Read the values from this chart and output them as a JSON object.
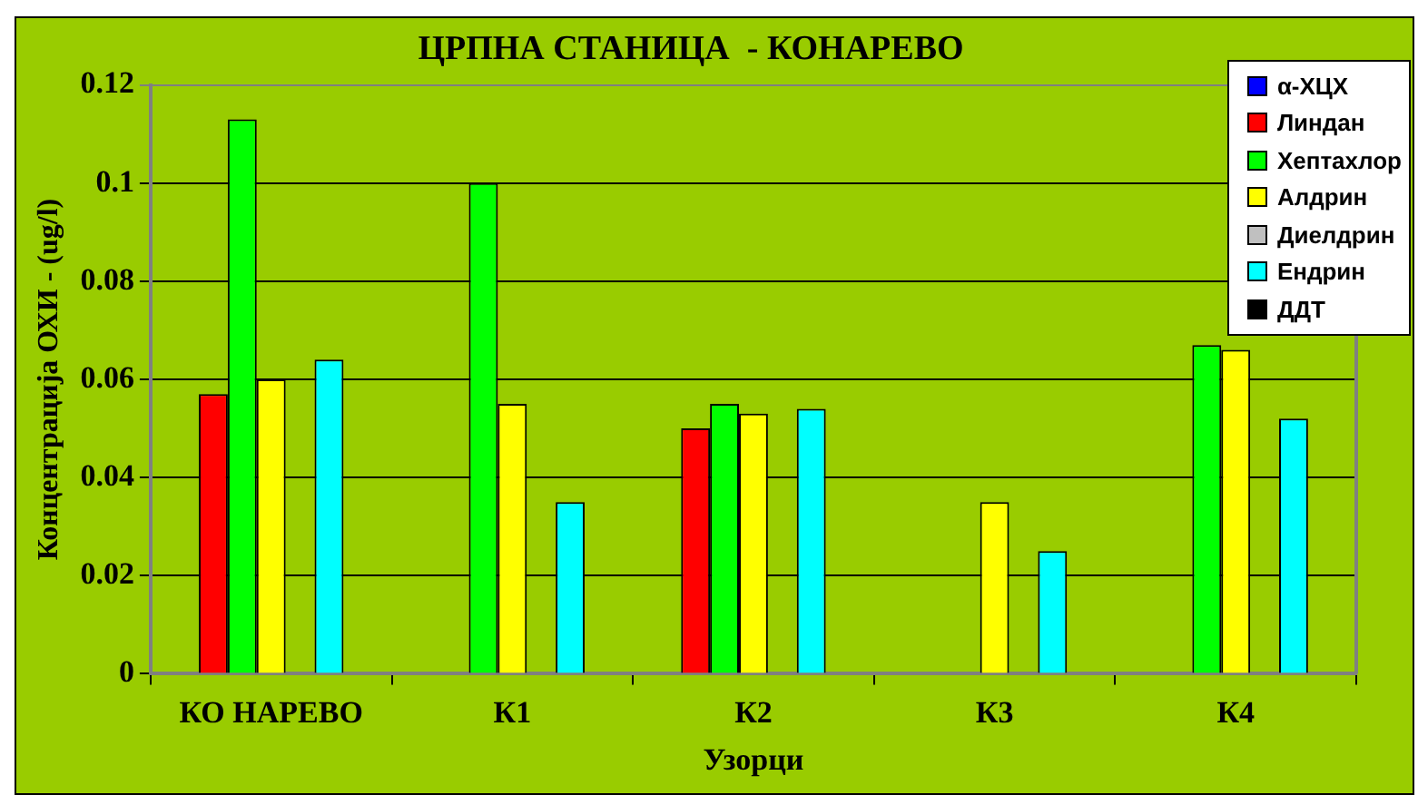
{
  "chart_data": {
    "type": "bar",
    "title": "ЦРПНА СТАНИЦА  - КОНАРЕВО",
    "xlabel": "Узорци",
    "ylabel": "Концентрација ОХИ - (ug/l)",
    "categories": [
      "КО НАРЕВО",
      "К1",
      "К2",
      "К3",
      "К4"
    ],
    "series": [
      {
        "name": "α-ХЦХ",
        "color": "#0000ff",
        "values": [
          null,
          null,
          null,
          null,
          null
        ]
      },
      {
        "name": "Линдан",
        "color": "#ff0000",
        "values": [
          0.057,
          null,
          0.05,
          null,
          null
        ]
      },
      {
        "name": "Хептахлор",
        "color": "#00ff00",
        "values": [
          0.113,
          0.1,
          0.055,
          null,
          0.067
        ]
      },
      {
        "name": "Алдрин",
        "color": "#ffff00",
        "values": [
          0.06,
          0.055,
          0.053,
          0.035,
          0.066
        ]
      },
      {
        "name": "Диелдрин",
        "color": "#c0c0c0",
        "values": [
          null,
          null,
          null,
          null,
          null
        ]
      },
      {
        "name": "Ендрин",
        "color": "#00ffff",
        "values": [
          0.064,
          0.035,
          0.054,
          0.025,
          0.052
        ]
      },
      {
        "name": "ДДТ",
        "color": "#000000",
        "values": [
          null,
          null,
          null,
          null,
          null
        ]
      }
    ],
    "ylim": [
      0,
      0.12
    ],
    "yticks": [
      0,
      0.02,
      0.04,
      0.06,
      0.08,
      0.1,
      0.12
    ],
    "grid": "y",
    "legend": "top right"
  }
}
